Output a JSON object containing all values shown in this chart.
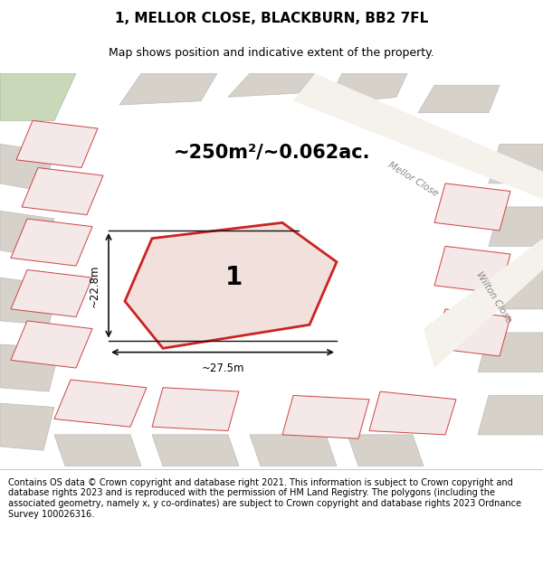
{
  "title": "1, MELLOR CLOSE, BLACKBURN, BB2 7FL",
  "subtitle": "Map shows position and indicative extent of the property.",
  "footer": "Contains OS data © Crown copyright and database right 2021. This information is subject to Crown copyright and database rights 2023 and is reproduced with the permission of HM Land Registry. The polygons (including the associated geometry, namely x, y co-ordinates) are subject to Crown copyright and database rights 2023 Ordnance Survey 100026316.",
  "area_text": "~250m²/~0.062ac.",
  "width_label": "~27.5m",
  "height_label": "~22.8m",
  "plot_number": "1",
  "map_bg": "#eeebe5",
  "building_fill": "#d6d2ca",
  "building_edge": "#bbbbbb",
  "red_fill": "#f5e8e8",
  "red_edge": "#cc4444",
  "highlight_fill": "#f2e0dc",
  "highlight_edge": "#cc2222",
  "green_fill": "#c8d8b8",
  "green_edge": "#aabbaa",
  "street_color": "#888888",
  "street_label_mellor": "Mellor Close",
  "street_label_wilton": "Wilton Close",
  "title_fontsize": 11,
  "subtitle_fontsize": 9,
  "footer_fontsize": 7,
  "dim_line_color": "#111111"
}
